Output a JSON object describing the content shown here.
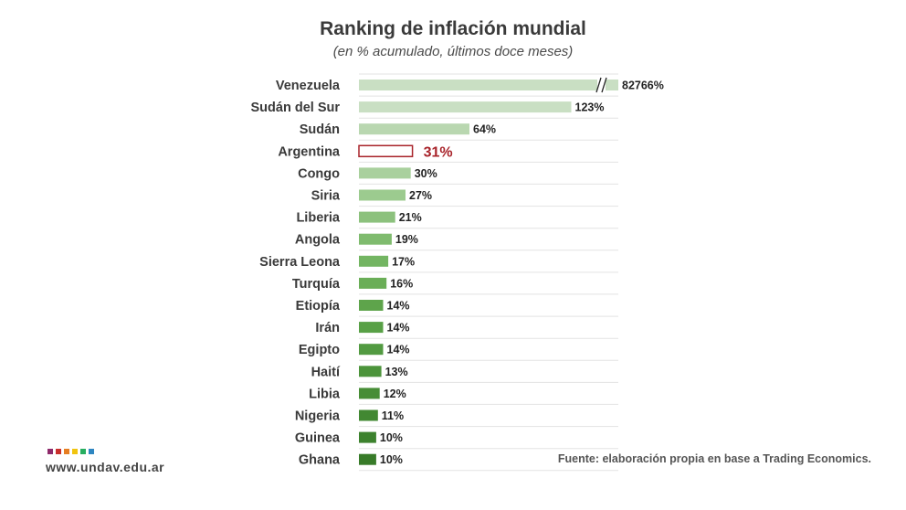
{
  "title": "Ranking de inflación mundial",
  "subtitle": "(en % acumulado, últimos doce meses)",
  "source": "Fuente: elaboración propia en base a Trading Economics.",
  "website": "www.undav.edu.ar",
  "logo_colors": [
    "#8e2a6b",
    "#c9302c",
    "#e67e22",
    "#f1c40f",
    "#27ae60",
    "#2e86c1"
  ],
  "chart_data": {
    "type": "bar",
    "orientation": "horizontal",
    "title": "Ranking de inflación mundial",
    "subtitle": "(en % acumulado, últimos doce meses)",
    "xlim": [
      0,
      150
    ],
    "axis_break": "Venezuela",
    "highlight": "Argentina",
    "highlight_color": "#a8232a",
    "categories": [
      "Venezuela",
      "Sudán del Sur",
      "Sudán",
      "Argentina",
      "Congo",
      "Siria",
      "Liberia",
      "Angola",
      "Sierra Leona",
      "Turquía",
      "Etiopía",
      "Irán",
      "Egipto",
      "Haití",
      "Libia",
      "Nigeria",
      "Guinea",
      "Ghana"
    ],
    "values": [
      82766,
      123,
      64,
      31,
      30,
      27,
      21,
      19,
      17,
      16,
      14,
      14,
      14,
      13,
      12,
      11,
      10,
      10
    ],
    "labels": [
      "82766%",
      "123%",
      "64%",
      "31%",
      "30%",
      "27%",
      "21%",
      "19%",
      "17%",
      "16%",
      "14%",
      "14%",
      "14%",
      "13%",
      "12%",
      "11%",
      "10%",
      "10%"
    ],
    "colors": [
      "#c9dfc3",
      "#c9dfc3",
      "#b9d7b0",
      "#ffffff",
      "#a9d09d",
      "#9ccb8f",
      "#8cc17d",
      "#7fbb6e",
      "#73b562",
      "#6aae57",
      "#5ea44b",
      "#58a046",
      "#529a41",
      "#4c943b",
      "#478d36",
      "#428832",
      "#3d822e",
      "#387b29"
    ]
  }
}
